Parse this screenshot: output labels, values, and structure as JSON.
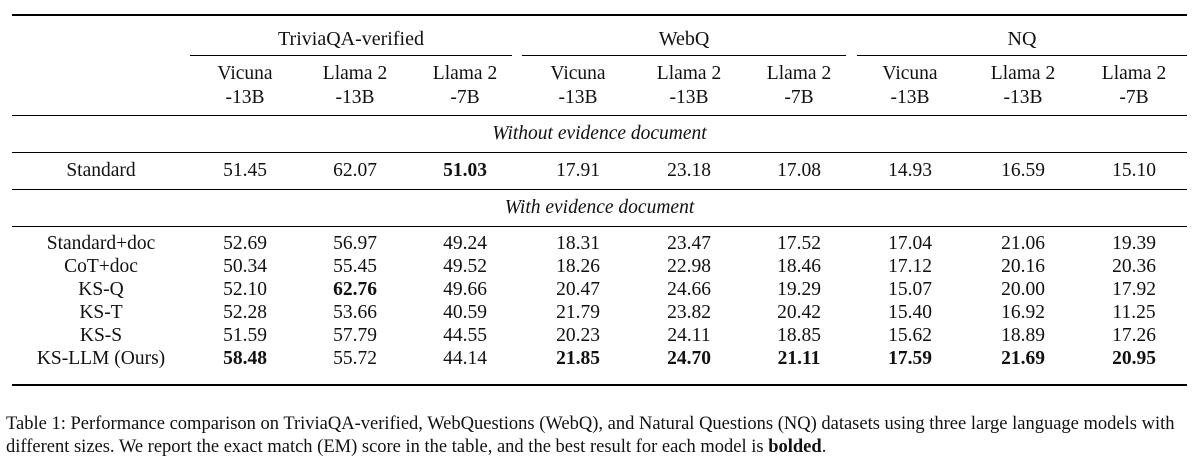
{
  "table": {
    "groups": [
      "TriviaQA-verified",
      "WebQ",
      "NQ"
    ],
    "model_line1": [
      "Vicuna",
      "Llama 2",
      "Llama 2",
      "Vicuna",
      "Llama 2",
      "Llama 2",
      "Vicuna",
      "Llama 2",
      "Llama 2"
    ],
    "model_line2": [
      "-13B",
      "-13B",
      "-7B",
      "-13B",
      "-13B",
      "-7B",
      "-13B",
      "-13B",
      "-7B"
    ],
    "section_without": "Without evidence document",
    "section_with": "With evidence document",
    "rows": [
      {
        "method": "Standard",
        "values": [
          "51.45",
          "62.07",
          "51.03",
          "17.91",
          "23.18",
          "17.08",
          "14.93",
          "16.59",
          "15.10"
        ],
        "bold": [
          false,
          false,
          true,
          false,
          false,
          false,
          false,
          false,
          false
        ]
      },
      {
        "method": "Standard+doc",
        "values": [
          "52.69",
          "56.97",
          "49.24",
          "18.31",
          "23.47",
          "17.52",
          "17.04",
          "21.06",
          "19.39"
        ],
        "bold": [
          false,
          false,
          false,
          false,
          false,
          false,
          false,
          false,
          false
        ]
      },
      {
        "method": "CoT+doc",
        "values": [
          "50.34",
          "55.45",
          "49.52",
          "18.26",
          "22.98",
          "18.46",
          "17.12",
          "20.16",
          "20.36"
        ],
        "bold": [
          false,
          false,
          false,
          false,
          false,
          false,
          false,
          false,
          false
        ]
      },
      {
        "method": "KS-Q",
        "values": [
          "52.10",
          "62.76",
          "49.66",
          "20.47",
          "24.66",
          "19.29",
          "15.07",
          "20.00",
          "17.92"
        ],
        "bold": [
          false,
          true,
          false,
          false,
          false,
          false,
          false,
          false,
          false
        ]
      },
      {
        "method": "KS-T",
        "values": [
          "52.28",
          "53.66",
          "40.59",
          "21.79",
          "23.82",
          "20.42",
          "15.40",
          "16.92",
          "11.25"
        ],
        "bold": [
          false,
          false,
          false,
          false,
          false,
          false,
          false,
          false,
          false
        ]
      },
      {
        "method": "KS-S",
        "values": [
          "51.59",
          "57.79",
          "44.55",
          "20.23",
          "24.11",
          "18.85",
          "15.62",
          "18.89",
          "17.26"
        ],
        "bold": [
          false,
          false,
          false,
          false,
          false,
          false,
          false,
          false,
          false
        ]
      },
      {
        "method": "KS-LLM (Ours)",
        "values": [
          "58.48",
          "55.72",
          "44.14",
          "21.85",
          "24.70",
          "21.11",
          "17.59",
          "21.69",
          "20.95"
        ],
        "bold": [
          true,
          false,
          false,
          true,
          true,
          true,
          true,
          true,
          true
        ]
      }
    ]
  },
  "caption": {
    "text": "Table 1: Performance comparison on TriviaQA-verified, WebQuestions (WebQ), and Natural Questions (NQ) datasets using three large language models with different sizes. We report the exact match (EM) score in the table, and the best result for each model is ",
    "bold_word": "bolded",
    "end": "."
  }
}
